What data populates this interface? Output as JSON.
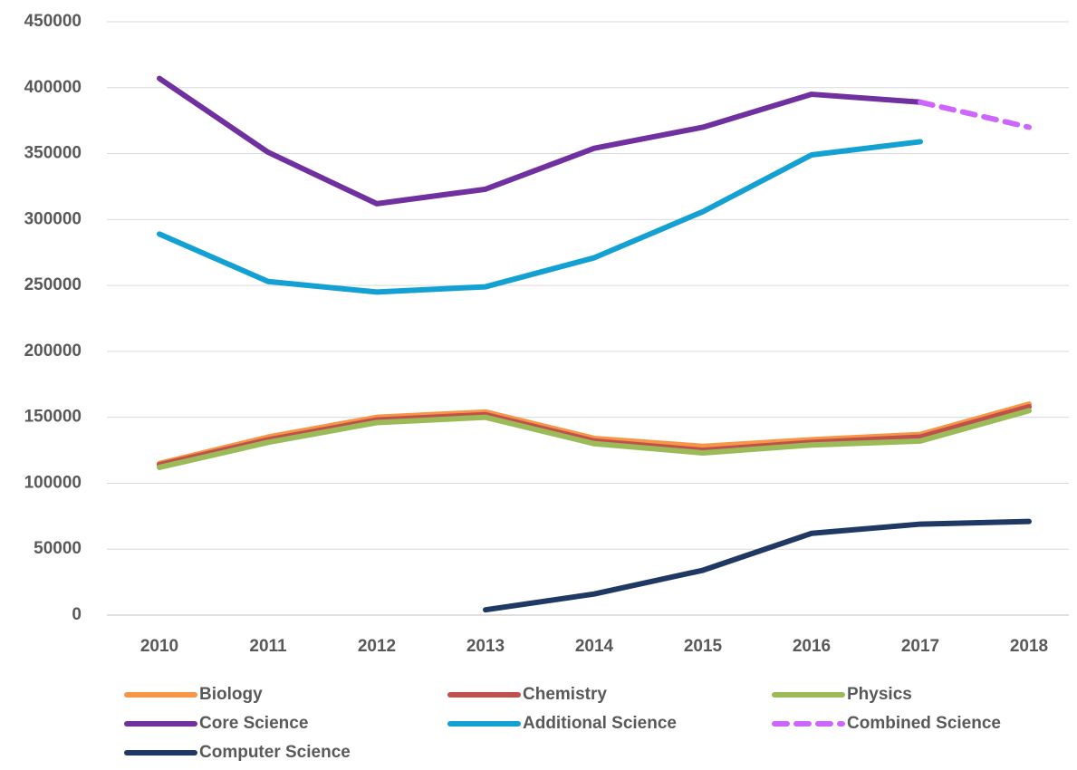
{
  "chart_data": {
    "type": "line",
    "categories": [
      "2010",
      "2011",
      "2012",
      "2013",
      "2014",
      "2015",
      "2016",
      "2017",
      "2018"
    ],
    "series": [
      {
        "name": "Biology",
        "color": "#f79646",
        "values": [
          115000,
          135000,
          150000,
          154000,
          134000,
          128000,
          133000,
          137000,
          160000
        ]
      },
      {
        "name": "Chemistry",
        "color": "#c0504d",
        "values": [
          114000,
          133000,
          148000,
          152000,
          132000,
          125000,
          131000,
          135000,
          158000
        ]
      },
      {
        "name": "Physics",
        "color": "#9bbb59",
        "values": [
          112000,
          131000,
          146000,
          150000,
          130000,
          123000,
          129000,
          132000,
          155000
        ]
      },
      {
        "name": "Core Science",
        "color": "#7030a0",
        "values": [
          407000,
          351000,
          312000,
          323000,
          354000,
          370000,
          395000,
          389000,
          null
        ]
      },
      {
        "name": "Additional Science",
        "color": "#13a0d3",
        "values": [
          289000,
          253000,
          245000,
          249000,
          271000,
          306000,
          349000,
          359000,
          null
        ]
      },
      {
        "name": "Combined Science",
        "color": "#cc66ff",
        "dashed": true,
        "values": [
          null,
          null,
          null,
          null,
          null,
          null,
          null,
          389000,
          370000
        ]
      },
      {
        "name": "Computer Science",
        "color": "#1f3864",
        "values": [
          null,
          null,
          null,
          4000,
          16000,
          34000,
          62000,
          69000,
          71000
        ]
      }
    ],
    "ylim": [
      0,
      450000
    ],
    "yticks": [
      0,
      50000,
      100000,
      150000,
      200000,
      250000,
      300000,
      350000,
      400000,
      450000
    ],
    "grid": true,
    "legend": "bottom"
  }
}
